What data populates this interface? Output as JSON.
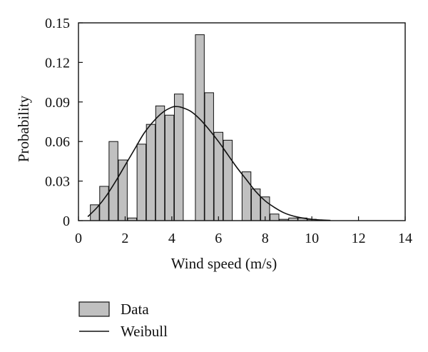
{
  "chart_data": {
    "type": "bar",
    "xlabel": "Wind speed (m/s)",
    "ylabel": "Probability",
    "xlim": [
      0,
      14
    ],
    "ylim": [
      0,
      0.15
    ],
    "xticks": [
      "0",
      "2",
      "4",
      "6",
      "8",
      "10",
      "12",
      "14"
    ],
    "yticks": [
      "0",
      "0.03",
      "0.06",
      "0.09",
      "0.12",
      "0.15"
    ],
    "bar_width": 0.38,
    "grid": false,
    "legend_placement": "bottom-left",
    "series": [
      {
        "name": "Data",
        "kind": "bar",
        "color": "#c0c0c0",
        "x": [
          0.7,
          1.1,
          1.5,
          1.9,
          2.3,
          2.7,
          3.1,
          3.5,
          3.9,
          4.3,
          4.7,
          5.2,
          5.6,
          6.0,
          6.4,
          6.8,
          7.2,
          7.6,
          8.0,
          8.4,
          8.8,
          9.2,
          9.6,
          10.0,
          10.4
        ],
        "values": [
          0.012,
          0.026,
          0.06,
          0.046,
          0.002,
          0.058,
          0.073,
          0.087,
          0.08,
          0.096,
          0.0,
          0.141,
          0.097,
          0.067,
          0.061,
          0.0,
          0.037,
          0.024,
          0.018,
          0.005,
          0.001,
          0.002,
          0.002,
          0.001,
          0.0
        ]
      },
      {
        "name": "Weibull",
        "kind": "line",
        "color": "#111111",
        "x": [
          0.4,
          0.8,
          1.2,
          1.6,
          2.0,
          2.4,
          2.8,
          3.2,
          3.6,
          4.0,
          4.2,
          4.4,
          4.8,
          5.2,
          5.6,
          6.0,
          6.4,
          6.8,
          7.2,
          7.6,
          8.0,
          8.4,
          8.8,
          9.2,
          9.6,
          10.0,
          10.4,
          10.8
        ],
        "values": [
          0.003,
          0.01,
          0.019,
          0.03,
          0.042,
          0.054,
          0.066,
          0.075,
          0.082,
          0.086,
          0.0865,
          0.086,
          0.083,
          0.077,
          0.069,
          0.06,
          0.05,
          0.04,
          0.031,
          0.022,
          0.015,
          0.01,
          0.006,
          0.0035,
          0.002,
          0.001,
          0.0005,
          0.0002
        ]
      }
    ]
  }
}
